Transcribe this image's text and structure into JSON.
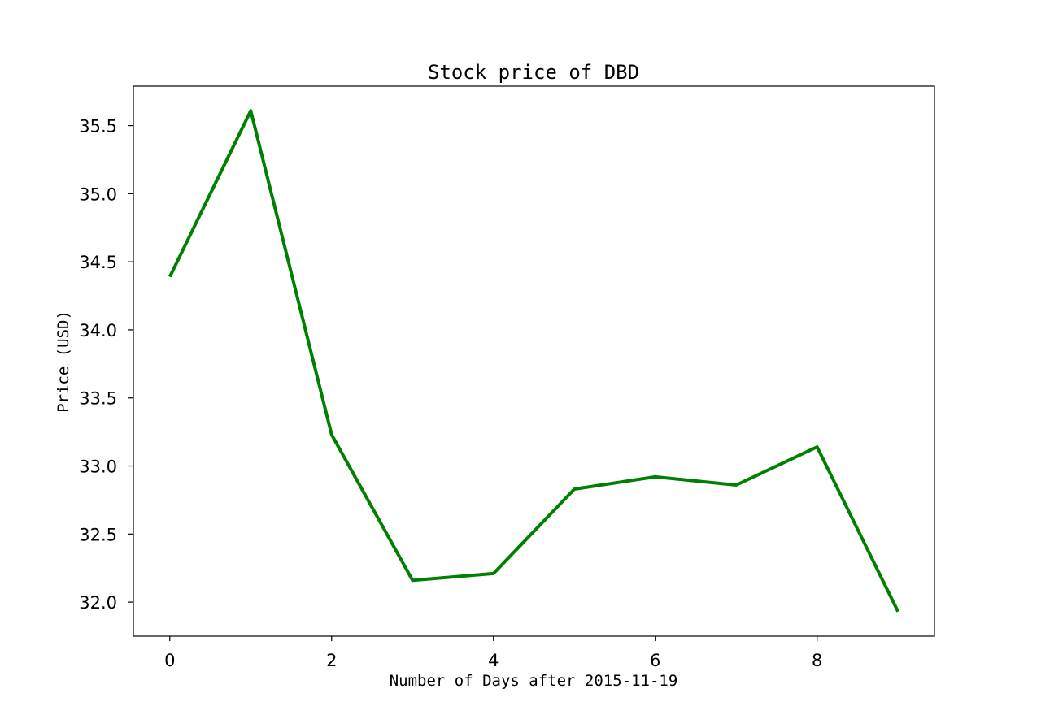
{
  "chart_data": {
    "type": "line",
    "title": "Stock price of DBD",
    "xlabel": "Number of Days after 2015-11-19",
    "ylabel": "Price (USD)",
    "x": [
      0,
      1,
      2,
      3,
      4,
      5,
      6,
      7,
      8,
      9
    ],
    "series": [
      {
        "values": [
          34.39,
          35.61,
          33.23,
          32.16,
          32.21,
          32.83,
          32.92,
          32.86,
          33.14,
          31.93
        ]
      }
    ],
    "xlim": [
      -0.45,
      9.45
    ],
    "ylim": [
      31.75,
      35.79
    ],
    "xticks": [
      0,
      2,
      4,
      6,
      8
    ],
    "xtick_labels": [
      "0",
      "2",
      "4",
      "6",
      "8"
    ],
    "yticks": [
      32.0,
      32.5,
      33.0,
      33.5,
      34.0,
      34.5,
      35.0,
      35.5
    ],
    "ytick_labels": [
      "32.0",
      "32.5",
      "33.0",
      "33.5",
      "34.0",
      "34.5",
      "35.0",
      "35.5"
    ],
    "line_color": "#008000",
    "grid": false,
    "legend": "none"
  }
}
